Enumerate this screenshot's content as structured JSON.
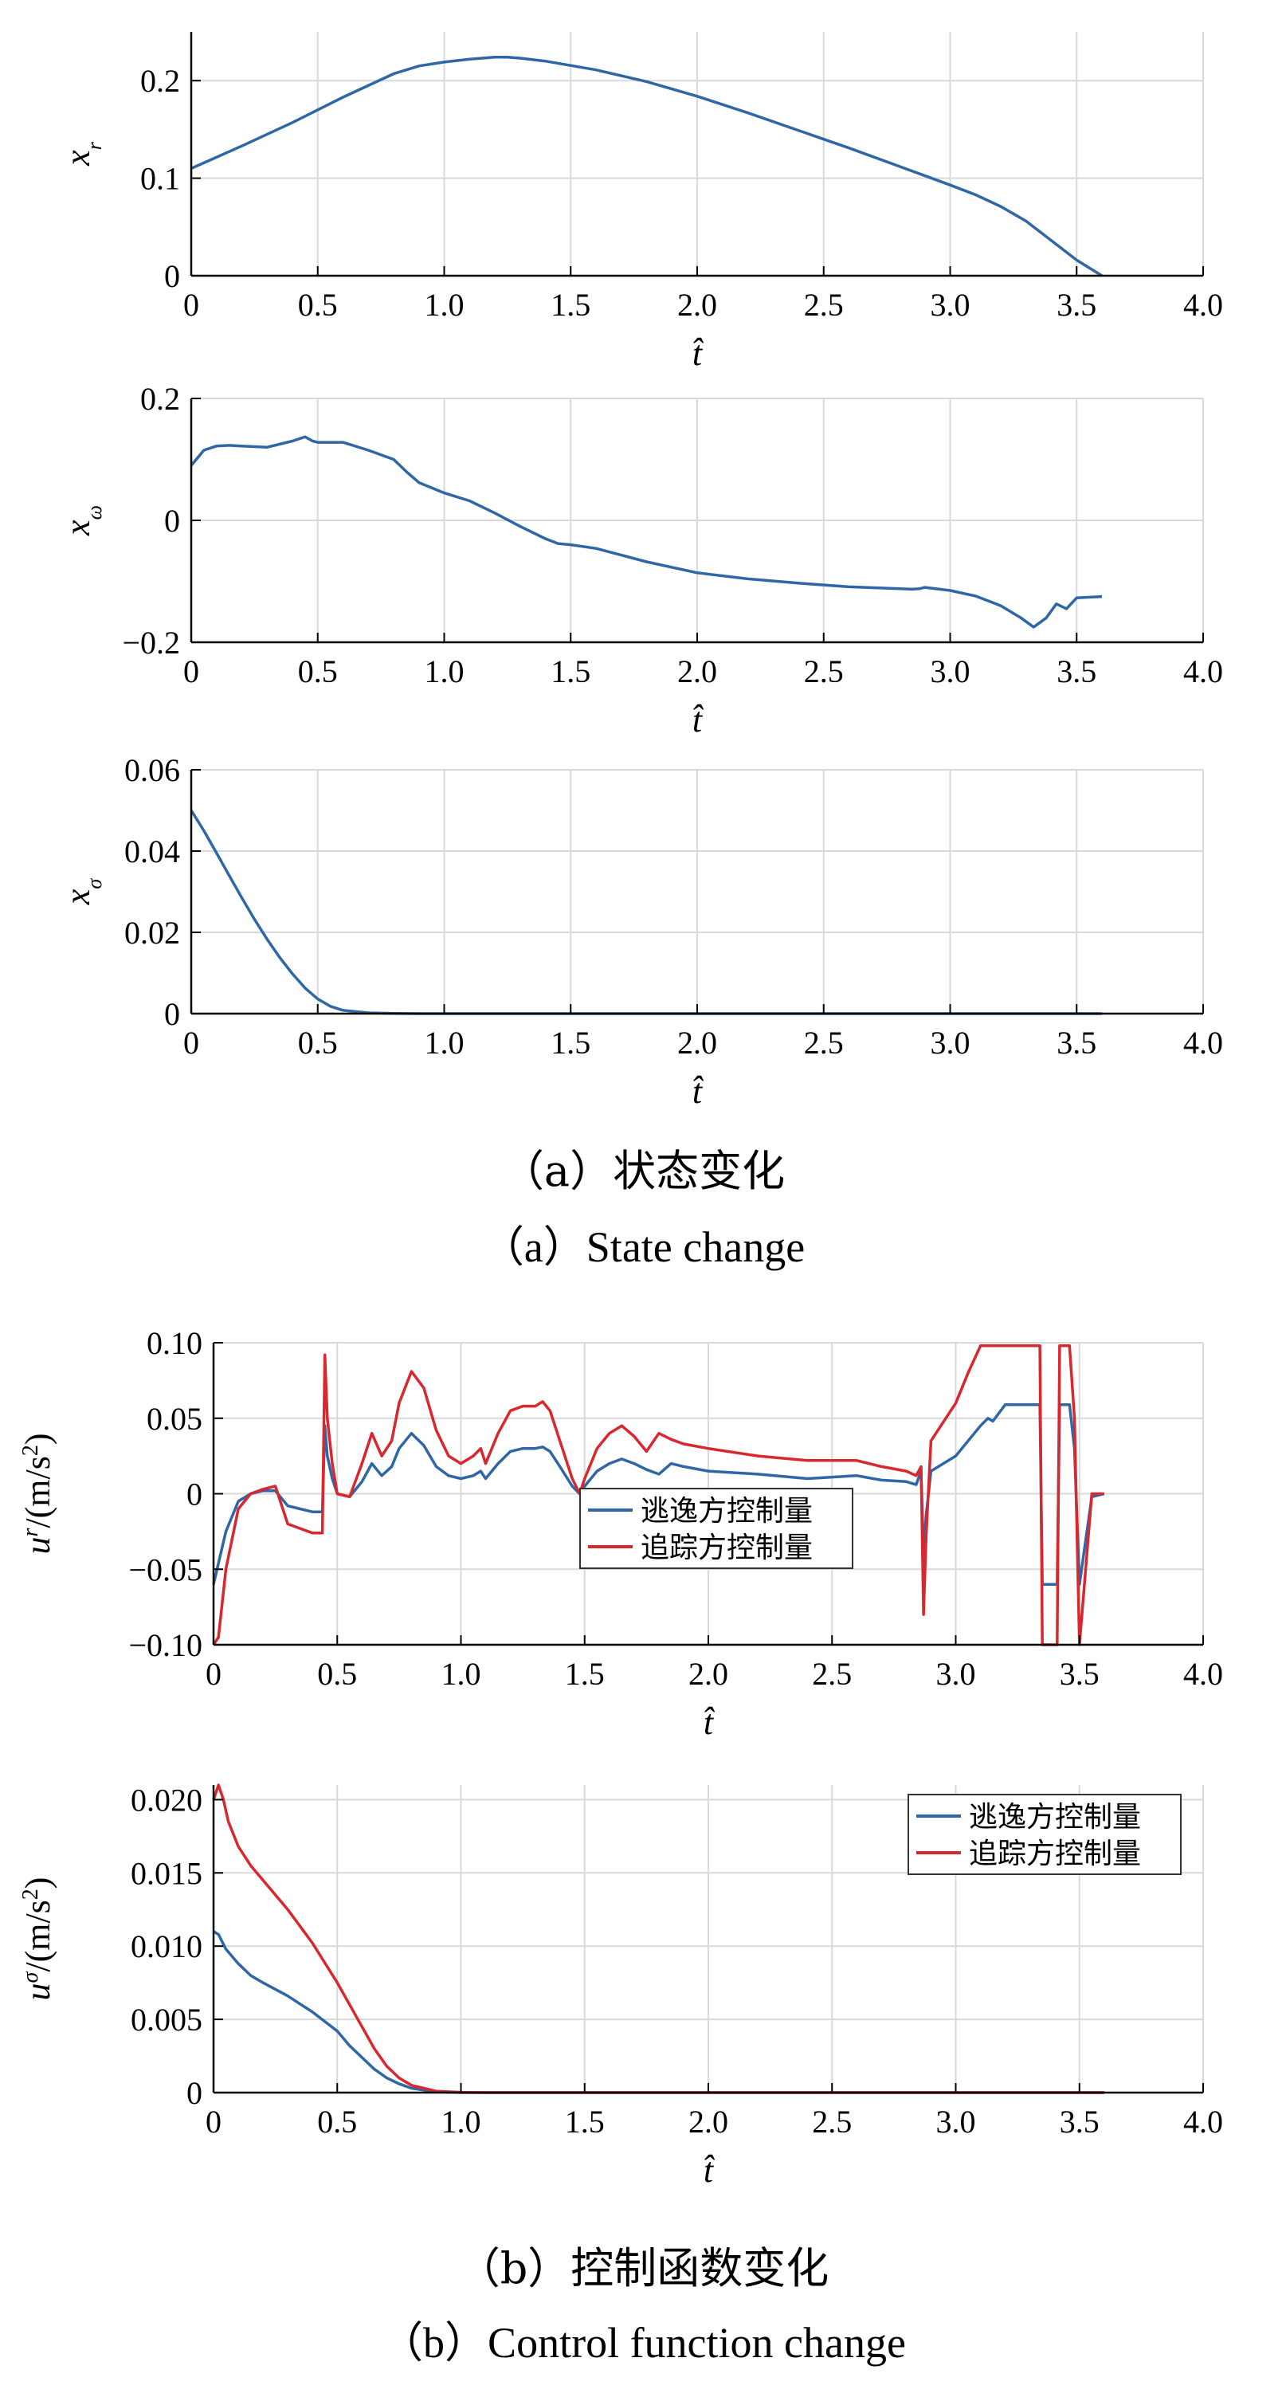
{
  "colors": {
    "evader": "#2f66a6",
    "pursuer": "#d9272e",
    "grid": "#d9d9d9",
    "axis": "#000000"
  },
  "captions": {
    "a_cn": "（a）状态变化",
    "a_en": "（a）State change",
    "b_cn": "（b）控制函数变化",
    "b_en": "（b）Control function change"
  },
  "chart_data": [
    {
      "id": "xr",
      "type": "line",
      "xlabel": "t̂",
      "ylabel": "x_r",
      "xlim": [
        0,
        4.0
      ],
      "ylim": [
        0,
        0.25
      ],
      "xticks": [
        "0",
        "0.5",
        "1.0",
        "1.5",
        "2.0",
        "2.5",
        "3.0",
        "3.5",
        "4.0"
      ],
      "yticks": [
        "0",
        "0.1",
        "0.2"
      ],
      "grid": true,
      "series": [
        {
          "color": "#2f66a6",
          "x": [
            0,
            0.2,
            0.4,
            0.6,
            0.8,
            0.9,
            1.0,
            1.1,
            1.2,
            1.25,
            1.3,
            1.4,
            1.6,
            1.8,
            2.0,
            2.2,
            2.4,
            2.6,
            2.8,
            3.0,
            3.1,
            3.2,
            3.3,
            3.4,
            3.5,
            3.6
          ],
          "y": [
            0.11,
            0.133,
            0.157,
            0.183,
            0.207,
            0.215,
            0.219,
            0.222,
            0.224,
            0.224,
            0.223,
            0.22,
            0.211,
            0.199,
            0.184,
            0.167,
            0.149,
            0.131,
            0.112,
            0.093,
            0.083,
            0.071,
            0.056,
            0.036,
            0.016,
            0.0
          ]
        }
      ]
    },
    {
      "id": "xw",
      "type": "line",
      "xlabel": "t̂",
      "ylabel": "x_ω",
      "xlim": [
        0,
        4.0
      ],
      "ylim": [
        -0.2,
        0.2
      ],
      "xticks": [
        "0",
        "0.5",
        "1.0",
        "1.5",
        "2.0",
        "2.5",
        "3.0",
        "3.5",
        "4.0"
      ],
      "yticks": [
        "−0.2",
        "0",
        "0.2"
      ],
      "grid": true,
      "series": [
        {
          "color": "#2f66a6",
          "x": [
            0,
            0.05,
            0.1,
            0.15,
            0.2,
            0.3,
            0.4,
            0.45,
            0.48,
            0.5,
            0.55,
            0.6,
            0.7,
            0.8,
            0.85,
            0.9,
            1.0,
            1.1,
            1.2,
            1.3,
            1.4,
            1.45,
            1.5,
            1.6,
            1.7,
            1.8,
            2.0,
            2.2,
            2.4,
            2.6,
            2.8,
            2.85,
            2.88,
            2.9,
            3.0,
            3.1,
            3.2,
            3.28,
            3.33,
            3.38,
            3.42,
            3.46,
            3.5,
            3.6
          ],
          "y": [
            0.09,
            0.115,
            0.122,
            0.123,
            0.122,
            0.12,
            0.13,
            0.137,
            0.13,
            0.128,
            0.128,
            0.128,
            0.115,
            0.1,
            0.08,
            0.062,
            0.045,
            0.032,
            0.012,
            -0.01,
            -0.03,
            -0.038,
            -0.04,
            -0.046,
            -0.057,
            -0.068,
            -0.086,
            -0.096,
            -0.103,
            -0.109,
            -0.112,
            -0.113,
            -0.112,
            -0.11,
            -0.115,
            -0.124,
            -0.14,
            -0.16,
            -0.175,
            -0.16,
            -0.137,
            -0.145,
            -0.127,
            -0.125
          ]
        }
      ]
    },
    {
      "id": "xs",
      "type": "line",
      "xlabel": "t̂",
      "ylabel": "x_σ",
      "xlim": [
        0,
        4.0
      ],
      "ylim": [
        0,
        0.06
      ],
      "xticks": [
        "0",
        "0.5",
        "1.0",
        "1.5",
        "2.0",
        "2.5",
        "3.0",
        "3.5",
        "4.0"
      ],
      "yticks": [
        "0",
        "0.02",
        "0.04",
        "0.06"
      ],
      "grid": true,
      "series": [
        {
          "color": "#2f66a6",
          "x": [
            0,
            0.05,
            0.1,
            0.15,
            0.2,
            0.25,
            0.3,
            0.35,
            0.4,
            0.45,
            0.5,
            0.55,
            0.6,
            0.7,
            0.8,
            0.9,
            1.0,
            1.5,
            2.0,
            2.5,
            3.0,
            3.6
          ],
          "y": [
            0.05,
            0.045,
            0.0395,
            0.034,
            0.0285,
            0.0232,
            0.0183,
            0.0138,
            0.0098,
            0.0063,
            0.0036,
            0.0018,
            0.0008,
            0.0002,
            3e-05,
            0,
            0,
            0,
            0,
            0,
            0,
            0
          ]
        }
      ]
    },
    {
      "id": "ur",
      "type": "line",
      "xlabel": "t̂",
      "ylabel": "u^r/(m/s^2)",
      "xlim": [
        0,
        4.0
      ],
      "ylim": [
        -0.1,
        0.1
      ],
      "xticks": [
        "0",
        "0.5",
        "1.0",
        "1.5",
        "2.0",
        "2.5",
        "3.0",
        "3.5",
        "4.0"
      ],
      "yticks": [
        "−0.10",
        "−0.05",
        "0",
        "0.05",
        "0.10"
      ],
      "grid": true,
      "legend": {
        "position": "lower-center",
        "entries": [
          "逃逸方控制量",
          "追踪方控制量"
        ]
      },
      "series": [
        {
          "name": "逃逸方控制量",
          "color": "#2f66a6",
          "x": [
            0,
            0.05,
            0.1,
            0.15,
            0.2,
            0.25,
            0.3,
            0.35,
            0.4,
            0.44,
            0.45,
            0.46,
            0.48,
            0.5,
            0.55,
            0.6,
            0.64,
            0.68,
            0.72,
            0.75,
            0.8,
            0.85,
            0.9,
            0.95,
            1.0,
            1.05,
            1.08,
            1.1,
            1.15,
            1.2,
            1.25,
            1.3,
            1.33,
            1.36,
            1.4,
            1.45,
            1.48,
            1.5,
            1.55,
            1.6,
            1.65,
            1.7,
            1.75,
            1.8,
            1.85,
            1.9,
            2.0,
            2.2,
            2.4,
            2.6,
            2.7,
            2.8,
            2.84,
            2.86,
            2.87,
            2.88,
            2.9,
            3.0,
            3.05,
            3.1,
            3.13,
            3.15,
            3.2,
            3.33,
            3.34,
            3.35,
            3.4,
            3.41,
            3.42,
            3.45,
            3.46,
            3.48,
            3.5,
            3.55,
            3.6
          ],
          "y": [
            -0.06,
            -0.025,
            -0.005,
            0.0,
            0.002,
            0.002,
            -0.008,
            -0.01,
            -0.012,
            -0.012,
            0.045,
            0.025,
            0.01,
            0.0,
            -0.002,
            0.008,
            0.02,
            0.012,
            0.018,
            0.03,
            0.04,
            0.032,
            0.018,
            0.012,
            0.01,
            0.012,
            0.015,
            0.01,
            0.02,
            0.028,
            0.03,
            0.03,
            0.031,
            0.028,
            0.018,
            0.005,
            0.0,
            0.005,
            0.015,
            0.02,
            0.023,
            0.02,
            0.016,
            0.013,
            0.02,
            0.018,
            0.015,
            0.013,
            0.01,
            0.012,
            0.009,
            0.008,
            0.006,
            0.015,
            -0.04,
            -0.015,
            0.015,
            0.025,
            0.035,
            0.045,
            0.05,
            0.048,
            0.059,
            0.059,
            0.059,
            -0.06,
            -0.06,
            -0.06,
            0.059,
            0.059,
            0.059,
            0.03,
            -0.06,
            -0.002,
            0.0
          ]
        },
        {
          "name": "追踪方控制量",
          "color": "#d9272e",
          "x": [
            0,
            0.02,
            0.05,
            0.1,
            0.15,
            0.2,
            0.25,
            0.3,
            0.35,
            0.4,
            0.44,
            0.45,
            0.46,
            0.48,
            0.5,
            0.55,
            0.6,
            0.64,
            0.68,
            0.72,
            0.75,
            0.8,
            0.85,
            0.9,
            0.95,
            1.0,
            1.05,
            1.08,
            1.1,
            1.15,
            1.2,
            1.25,
            1.3,
            1.33,
            1.36,
            1.4,
            1.45,
            1.48,
            1.5,
            1.55,
            1.6,
            1.65,
            1.7,
            1.75,
            1.8,
            1.85,
            1.9,
            2.0,
            2.2,
            2.4,
            2.6,
            2.7,
            2.8,
            2.84,
            2.86,
            2.87,
            2.88,
            2.9,
            3.0,
            3.05,
            3.1,
            3.33,
            3.34,
            3.35,
            3.4,
            3.41,
            3.42,
            3.45,
            3.46,
            3.48,
            3.5,
            3.55,
            3.6
          ],
          "y": [
            -0.1,
            -0.095,
            -0.05,
            -0.01,
            0.0,
            0.003,
            0.005,
            -0.02,
            -0.023,
            -0.026,
            -0.026,
            0.092,
            0.05,
            0.02,
            0.0,
            -0.002,
            0.02,
            0.04,
            0.025,
            0.035,
            0.06,
            0.081,
            0.07,
            0.042,
            0.025,
            0.02,
            0.025,
            0.03,
            0.02,
            0.04,
            0.055,
            0.058,
            0.058,
            0.061,
            0.055,
            0.035,
            0.01,
            0.0,
            0.01,
            0.03,
            0.04,
            0.045,
            0.038,
            0.028,
            0.04,
            0.036,
            0.033,
            0.03,
            0.025,
            0.022,
            0.022,
            0.018,
            0.015,
            0.012,
            0.018,
            -0.08,
            -0.03,
            0.035,
            0.06,
            0.08,
            0.098,
            0.098,
            0.098,
            -0.1,
            -0.1,
            -0.1,
            0.098,
            0.098,
            0.098,
            0.05,
            -0.1,
            0.0,
            0.0
          ]
        }
      ]
    },
    {
      "id": "us",
      "type": "line",
      "xlabel": "t̂",
      "ylabel": "u^σ/(m/s^2)",
      "xlim": [
        0,
        4.0
      ],
      "ylim": [
        0,
        0.021
      ],
      "xticks": [
        "0",
        "0.5",
        "1.0",
        "1.5",
        "2.0",
        "2.5",
        "3.0",
        "3.5",
        "4.0"
      ],
      "yticks": [
        "0",
        "0.005",
        "0.010",
        "0.015",
        "0.020"
      ],
      "grid": true,
      "legend": {
        "position": "top-right",
        "entries": [
          "逃逸方控制量",
          "追踪方控制量"
        ]
      },
      "series": [
        {
          "name": "逃逸方控制量",
          "color": "#2f66a6",
          "x": [
            0,
            0.02,
            0.05,
            0.1,
            0.15,
            0.2,
            0.3,
            0.4,
            0.5,
            0.55,
            0.6,
            0.65,
            0.7,
            0.75,
            0.8,
            0.9,
            1.0,
            1.5,
            2.0,
            2.5,
            3.0,
            3.6
          ],
          "y": [
            0.011,
            0.0108,
            0.0098,
            0.0088,
            0.008,
            0.0075,
            0.0066,
            0.0055,
            0.0042,
            0.0032,
            0.0024,
            0.0016,
            0.001,
            0.0006,
            0.0003,
            5e-05,
            0.0,
            0.0,
            0.0,
            0.0,
            0.0,
            0.0
          ]
        },
        {
          "name": "追踪方控制量",
          "color": "#d9272e",
          "x": [
            0,
            0.02,
            0.04,
            0.06,
            0.1,
            0.15,
            0.2,
            0.3,
            0.4,
            0.5,
            0.55,
            0.6,
            0.65,
            0.7,
            0.75,
            0.8,
            0.9,
            1.0,
            1.1,
            1.5,
            2.0,
            2.5,
            3.0,
            3.6
          ],
          "y": [
            0.02,
            0.021,
            0.02,
            0.0185,
            0.0168,
            0.0155,
            0.0145,
            0.0125,
            0.0102,
            0.0075,
            0.006,
            0.0045,
            0.003,
            0.0018,
            0.001,
            0.0005,
            0.0001,
            2e-05,
            0.0,
            0.0,
            0.0,
            0.0,
            0.0,
            0.0
          ]
        }
      ]
    }
  ]
}
